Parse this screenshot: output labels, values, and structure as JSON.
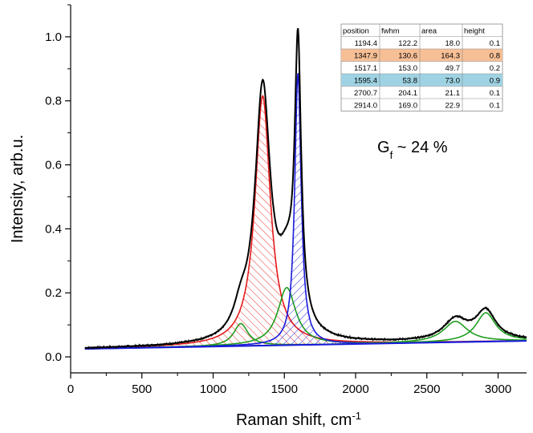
{
  "chart_data": {
    "type": "line",
    "xlabel": "Raman shift, cm",
    "xlabel_sup": "-1",
    "ylabel": "Intensity, arb.u.",
    "xlim": [
      0,
      3200
    ],
    "ylim": [
      -0.05,
      1.1
    ],
    "x_ticks": [
      0,
      500,
      1000,
      1500,
      2000,
      2500,
      3000
    ],
    "y_ticks": [
      0.0,
      0.2,
      0.4,
      0.6,
      0.8,
      1.0
    ],
    "x_tick_labels": [
      "0",
      "500",
      "1000",
      "1500",
      "2000",
      "2500",
      "3000"
    ],
    "y_tick_labels": [
      "0.0",
      "0.2",
      "0.4",
      "0.6",
      "0.8",
      "1.0"
    ],
    "grid": false,
    "baseline": {
      "x": [
        100,
        3200
      ],
      "y": [
        0.025,
        0.05
      ]
    },
    "peaks": [
      {
        "position": 1194.4,
        "fwhm": 122.2,
        "height": 0.07,
        "color": "#1e9e1e"
      },
      {
        "position": 1347.9,
        "fwhm": 130.6,
        "height": 0.78,
        "color": "#e41a1a",
        "hatched": true
      },
      {
        "position": 1517.1,
        "fwhm": 153.0,
        "height": 0.18,
        "color": "#1e9e1e"
      },
      {
        "position": 1595.4,
        "fwhm": 53.8,
        "height": 0.85,
        "color": "#1a1adc",
        "hatched": true
      },
      {
        "position": 2700.7,
        "fwhm": 204.1,
        "height": 0.065,
        "color": "#1e9e1e"
      },
      {
        "position": 2914.0,
        "fwhm": 169.0,
        "height": 0.09,
        "color": "#1e9e1e"
      }
    ],
    "colors": {
      "measured": "#000000",
      "envelope": "#000000",
      "baseline": "#1a1adc"
    }
  },
  "table": {
    "headers": [
      "position",
      "fwhm",
      "area",
      "height"
    ],
    "rows": [
      {
        "cells": [
          "1194.4",
          "122.2",
          "18.0",
          "0.1"
        ],
        "highlight": ""
      },
      {
        "cells": [
          "1347.9",
          "130.6",
          "164.3",
          "0.8"
        ],
        "highlight": "#f7bf96"
      },
      {
        "cells": [
          "1517.1",
          "153.0",
          "49.7",
          "0.2"
        ],
        "highlight": ""
      },
      {
        "cells": [
          "1595.4",
          "53.8",
          "73.0",
          "0.9"
        ],
        "highlight": "#9fd3e3"
      },
      {
        "cells": [
          "2700.7",
          "204.1",
          "21.1",
          "0.1"
        ],
        "highlight": ""
      },
      {
        "cells": [
          "2914.0",
          "169.0",
          "22.9",
          "0.1"
        ],
        "highlight": ""
      }
    ]
  },
  "annotation": {
    "main": "G",
    "sub": "f",
    "rest": " ~ 24 %"
  }
}
